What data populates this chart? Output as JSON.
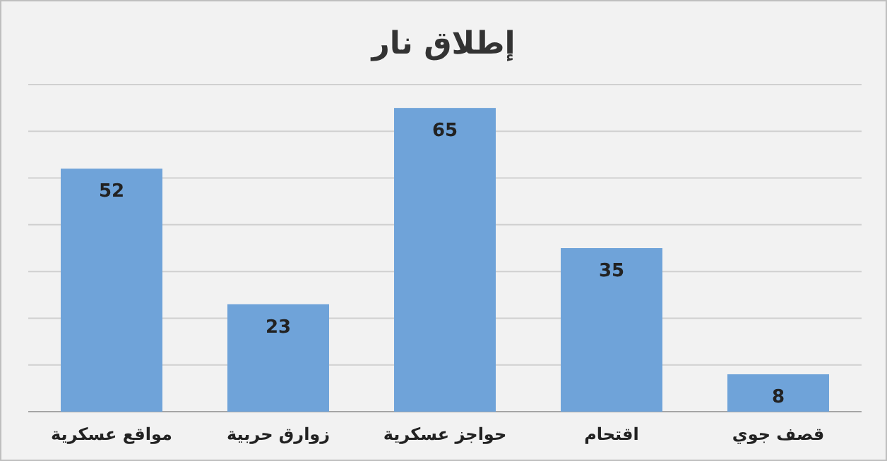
{
  "chart_data": {
    "type": "bar",
    "title": "إطلاق نار",
    "categories": [
      "مواقع عسكرية",
      "زوارق حربية",
      "حواجز عسكرية",
      "اقتحام",
      "قصف جوي"
    ],
    "values": [
      52,
      23,
      65,
      35,
      8
    ],
    "color": "#6fa3d9",
    "ylim": [
      0,
      70
    ],
    "yticks": [
      {
        "value": 0,
        "label": null
      },
      {
        "value": 10,
        "label": null
      },
      {
        "value": 20,
        "label": null
      },
      {
        "value": 30,
        "label": null
      },
      {
        "value": 40,
        "label": null
      },
      {
        "value": 50,
        "label": null
      },
      {
        "value": 60,
        "label": null
      },
      {
        "value": 70,
        "label": null
      }
    ],
    "grid": "y",
    "data_labels": true,
    "tick_labels": "x"
  }
}
